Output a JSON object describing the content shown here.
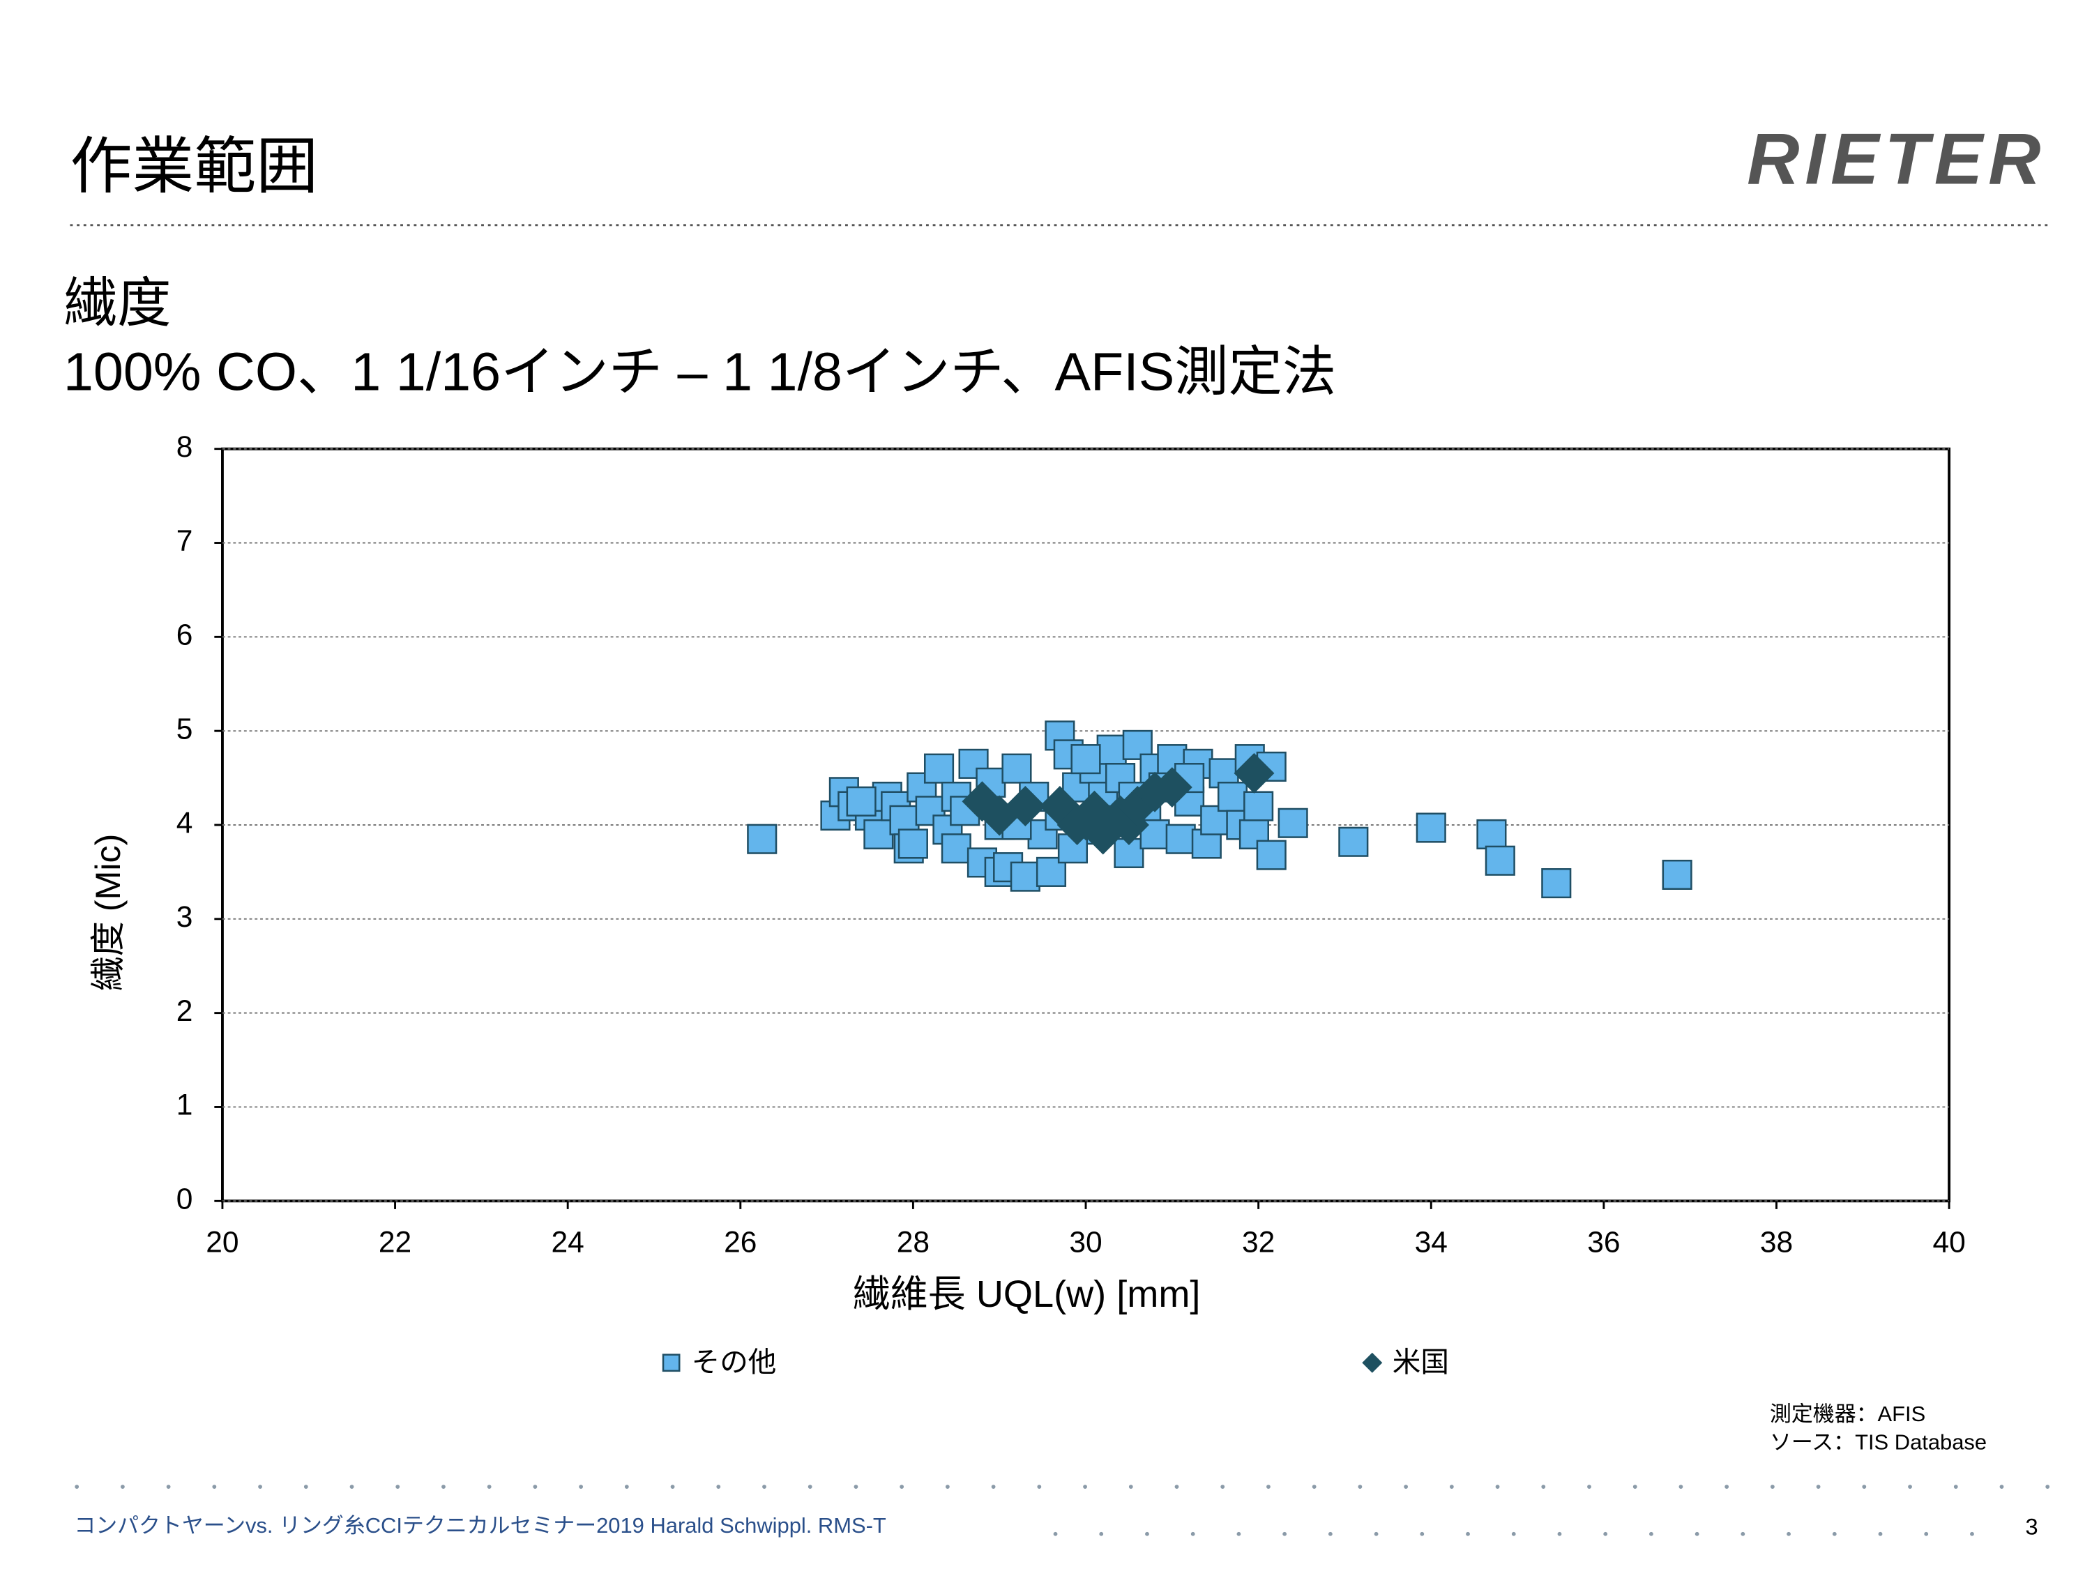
{
  "slide": {
    "title": "作業範囲",
    "logo": "RIETER",
    "subtitle1": "繊度",
    "subtitle2": "100% CO、1 1/16インチ – 1 1/8インチ、AFIS測定法",
    "note1": "測定機器：AFIS",
    "note2": "ソース：TIS Database",
    "footer": "コンパクトヤーンvs. リング糸CCIテクニカルセミナー2019 Harald Schwippl. RMS-T",
    "page": "3"
  },
  "chart_data": {
    "type": "scatter",
    "xlabel": "繊維長 UQL(w) [mm]",
    "ylabel": "繊度 (Mic)",
    "xlim": [
      20,
      40
    ],
    "ylim": [
      0,
      8
    ],
    "xticks": [
      20,
      22,
      24,
      26,
      28,
      30,
      32,
      34,
      36,
      38,
      40
    ],
    "yticks": [
      0,
      1,
      2,
      3,
      4,
      5,
      6,
      7,
      8
    ],
    "grid": true,
    "legend": "bottom",
    "series": [
      {
        "name": "その他",
        "color": "#63b5ec",
        "marker": "square",
        "x": [
          27.1,
          27.2,
          27.3,
          27.5,
          27.6,
          27.7,
          27.8,
          27.9,
          27.95,
          28.1,
          28.2,
          28.3,
          28.4,
          28.5,
          28.5,
          28.7,
          28.8,
          28.9,
          29.0,
          29.0,
          29.1,
          29.2,
          29.3,
          29.4,
          29.5,
          29.6,
          29.7,
          29.7,
          29.8,
          29.9,
          30.0,
          30.1,
          30.2,
          30.3,
          30.4,
          30.5,
          30.6,
          30.7,
          30.8,
          30.8,
          30.9,
          31.0,
          31.1,
          31.2,
          31.3,
          31.4,
          31.5,
          31.6,
          31.7,
          31.8,
          31.9,
          31.95,
          32.0,
          28.0,
          29.85,
          30.35,
          27.4,
          28.6,
          29.2,
          30.0,
          31.2,
          30.55,
          26.25,
          33.1,
          34.0,
          34.7,
          34.8,
          35.45,
          36.85,
          32.4,
          32.15,
          32.15
        ],
        "y": [
          4.1,
          4.35,
          4.2,
          4.1,
          3.9,
          4.3,
          4.2,
          4.05,
          3.75,
          4.4,
          4.15,
          4.6,
          3.95,
          4.3,
          3.75,
          4.65,
          3.6,
          4.45,
          3.5,
          4.0,
          3.55,
          4.6,
          3.45,
          4.3,
          3.9,
          3.5,
          4.1,
          4.95,
          4.75,
          4.4,
          3.95,
          4.6,
          4.3,
          4.8,
          4.5,
          3.7,
          4.85,
          4.2,
          4.6,
          3.9,
          4.4,
          4.7,
          3.85,
          4.25,
          4.65,
          3.8,
          4.05,
          4.55,
          4.3,
          4.0,
          4.7,
          3.9,
          4.2,
          3.8,
          3.75,
          4.05,
          4.25,
          4.15,
          4.0,
          4.7,
          4.5,
          4.3,
          3.85,
          3.82,
          3.97,
          3.9,
          3.62,
          3.38,
          3.47,
          4.02,
          4.62,
          3.68
        ]
      },
      {
        "name": "米国",
        "color": "#1e5060",
        "marker": "diamond",
        "x": [
          28.8,
          29.0,
          29.3,
          29.7,
          29.9,
          30.0,
          30.1,
          30.2,
          30.4,
          30.5,
          30.6,
          30.8,
          31.0,
          31.95
        ],
        "y": [
          4.25,
          4.1,
          4.2,
          4.2,
          4.0,
          4.05,
          4.15,
          3.9,
          4.1,
          4.0,
          4.2,
          4.35,
          4.4,
          4.55
        ]
      }
    ]
  }
}
